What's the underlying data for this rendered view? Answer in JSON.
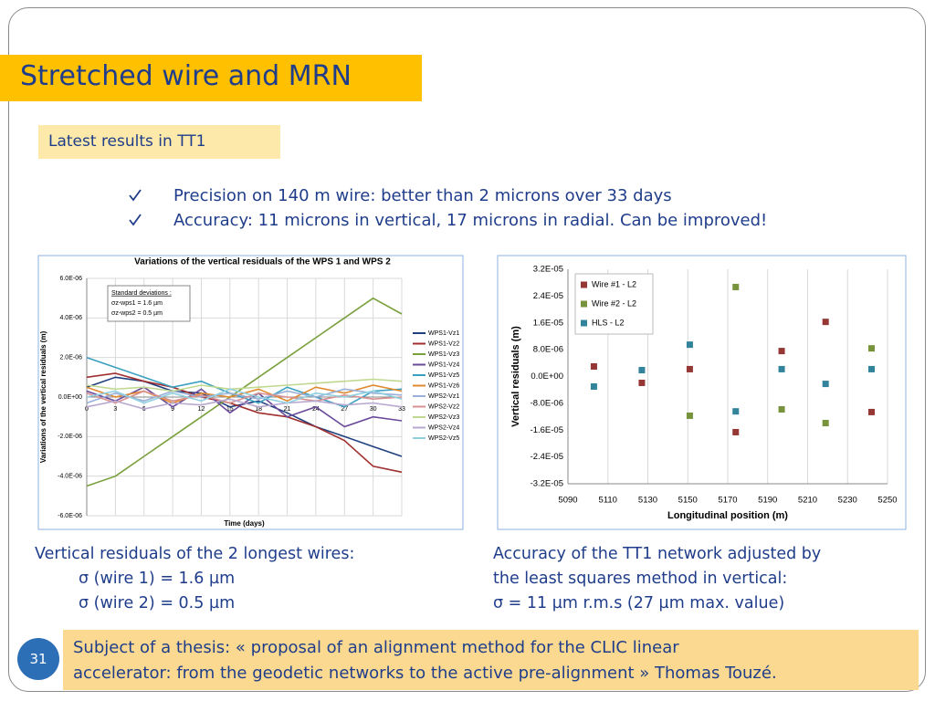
{
  "title": "Stretched wire and MRN",
  "subtitle": "Latest results in TT1",
  "bullets": [
    "Precision on 140 m wire: better than 2 microns over 33 days",
    "Accuracy: 11 microns in vertical, 17 microns in radial. Can be improved!"
  ],
  "left_caption": [
    "Vertical residuals of the 2 longest wires:",
    "σ (wire 1) = 1.6 µm",
    "σ (wire 2) = 0.5 µm"
  ],
  "right_caption": [
    "Accuracy of the TT1 network adjusted by",
    "the least squares method in vertical:",
    "σ = 11 µm r.m.s (27 µm max. value)"
  ],
  "footer_note": [
    "Subject of a thesis: « proposal of an alignment method for the CLIC linear",
    "accelerator: from the geodetic networks to the active pre-alignment » Thomas Touzé."
  ],
  "page_number": "31",
  "chart_data": [
    {
      "type": "line",
      "title": "Variations of the vertical residuals of the WPS 1 and WPS 2",
      "xlabel": "Time (days)",
      "ylabel": "Variations of the vertical residuals (m)",
      "x": [
        0,
        3,
        6,
        9,
        12,
        15,
        18,
        21,
        24,
        27,
        30,
        33
      ],
      "xlim": [
        0,
        33
      ],
      "xticks": [
        0,
        3,
        6,
        9,
        12,
        15,
        18,
        21,
        24,
        27,
        30,
        33
      ],
      "ylim": [
        -6e-06,
        6e-06
      ],
      "yticks": [
        {
          "value": -6e-06,
          "label": "-6.0E-06"
        },
        {
          "value": -4e-06,
          "label": "-4.0E-06"
        },
        {
          "value": -2e-06,
          "label": "-2.0E-06"
        },
        {
          "value": 0,
          "label": "0.0E+00"
        },
        {
          "value": 2e-06,
          "label": "2.0E-06"
        },
        {
          "value": 4e-06,
          "label": "4.0E-06"
        },
        {
          "value": 6e-06,
          "label": "6.0E-06"
        }
      ],
      "grid": true,
      "legend": "right",
      "annotations": [
        "Standard deviations :",
        "σz-wps1 = 1.6 µm",
        "σz-wps2 = 0.5 µm"
      ],
      "series": [
        {
          "name": "WPS1-Vz1",
          "color": "#1f3f7f",
          "values": [
            5e-07,
            1e-06,
            8e-07,
            3e-07,
            2e-07,
            -5e-07,
            -2e-07,
            -8e-07,
            -1.5e-06,
            -2e-06,
            -2.5e-06,
            -3e-06
          ]
        },
        {
          "name": "WPS1-Vz2",
          "color": "#a03030",
          "values": [
            1e-06,
            1.2e-06,
            8e-07,
            5e-07,
            0,
            -3e-07,
            -8e-07,
            -1e-06,
            -1.5e-06,
            -2.2e-06,
            -3.5e-06,
            -3.8e-06
          ]
        },
        {
          "name": "WPS1-Vz3",
          "color": "#7aa03c",
          "values": [
            -4.5e-06,
            -4e-06,
            -3e-06,
            -2e-06,
            -1e-06,
            0,
            1e-06,
            2e-06,
            3e-06,
            4e-06,
            5e-06,
            4.2e-06
          ]
        },
        {
          "name": "WPS1-Vz4",
          "color": "#6a4a9a",
          "values": [
            3e-07,
            -2e-07,
            5e-07,
            -5e-07,
            4e-07,
            -8e-07,
            2e-07,
            -1e-06,
            -5e-07,
            -1.5e-06,
            -1e-06,
            -1.2e-06
          ]
        },
        {
          "name": "WPS1-Vz5",
          "color": "#3aa0c0",
          "values": [
            2e-06,
            1.5e-06,
            1e-06,
            5e-07,
            8e-07,
            2e-07,
            -3e-07,
            5e-07,
            0,
            -5e-07,
            3e-07,
            4e-07
          ]
        },
        {
          "name": "WPS1-Vz6",
          "color": "#e08a30",
          "values": [
            5e-07,
            0,
            3e-07,
            -3e-07,
            2e-07,
            0,
            4e-07,
            -2e-07,
            5e-07,
            2e-07,
            6e-07,
            3e-07
          ]
        },
        {
          "name": "WPS2-Vz1",
          "color": "#9ab0d8",
          "values": [
            -3e-07,
            2e-07,
            -2e-07,
            3e-07,
            0,
            2e-07,
            -1e-07,
            3e-07,
            0,
            4e-07,
            2e-07,
            1e-07
          ]
        },
        {
          "name": "WPS2-Vz2",
          "color": "#d89090",
          "values": [
            2e-07,
            -3e-07,
            3e-07,
            -2e-07,
            1e-07,
            -3e-07,
            2e-07,
            0,
            -2e-07,
            1e-07,
            -1e-07,
            0
          ]
        },
        {
          "name": "WPS2-Vz3",
          "color": "#c0d890",
          "values": [
            6e-07,
            4e-07,
            5e-07,
            3e-07,
            6e-07,
            4e-07,
            5e-07,
            6e-07,
            7e-07,
            8e-07,
            9e-07,
            8e-07
          ]
        },
        {
          "name": "WPS2-Vz4",
          "color": "#b8a8d0",
          "values": [
            -5e-07,
            -2e-07,
            -6e-07,
            -3e-07,
            -4e-07,
            -1e-07,
            -5e-07,
            -3e-07,
            -2e-07,
            -4e-07,
            -3e-07,
            -5e-07
          ]
        },
        {
          "name": "WPS2-Vz5",
          "color": "#90d0e0",
          "values": [
            0,
            3e-07,
            -3e-07,
            2e-07,
            -2e-07,
            4e-07,
            0,
            -3e-07,
            2e-07,
            0,
            3e-07,
            -1e-07
          ]
        }
      ]
    },
    {
      "type": "scatter",
      "xlabel": "Longitudinal position (m)",
      "ylabel": "Vertical residuals (m)",
      "xlim": [
        5090,
        5250
      ],
      "xticks": [
        5090,
        5110,
        5130,
        5150,
        5170,
        5190,
        5210,
        5230,
        5250
      ],
      "ylim": [
        -3.2e-05,
        3.2e-05
      ],
      "yticks": [
        {
          "value": -3.2e-05,
          "label": "-3.2E-05"
        },
        {
          "value": -2.4e-05,
          "label": "-2.4E-05"
        },
        {
          "value": -1.6e-05,
          "label": "-1.6E-05"
        },
        {
          "value": -8e-06,
          "label": "-8.0E-06"
        },
        {
          "value": 0,
          "label": "0.0E+00"
        },
        {
          "value": 8e-06,
          "label": "8.0E-06"
        },
        {
          "value": 1.6e-05,
          "label": "1.6E-05"
        },
        {
          "value": 2.4e-05,
          "label": "2.4E-05"
        },
        {
          "value": 3.2e-05,
          "label": "3.2E-05"
        }
      ],
      "grid": "x",
      "legend": "upper left",
      "series": [
        {
          "name": "Wire #1 - L2",
          "color": "#953735",
          "x": [
            5103,
            5127,
            5151,
            5174,
            5197,
            5219,
            5242
          ],
          "values": [
            3e-06,
            -1.9e-06,
            2.2e-06,
            -1.66e-05,
            7.6e-06,
            1.63e-05,
            -1.06e-05
          ]
        },
        {
          "name": "Wire #2 - L2",
          "color": "#77933c",
          "x": [
            5151,
            5174,
            5197,
            5219,
            5242
          ],
          "values": [
            -1.17e-05,
            2.67e-05,
            -9.8e-06,
            -1.39e-05,
            8.4e-06
          ]
        },
        {
          "name": "HLS - L2",
          "color": "#31849b",
          "x": [
            5103,
            5127,
            5151,
            5174,
            5197,
            5219,
            5242
          ],
          "values": [
            -3e-06,
            1.9e-06,
            9.5e-06,
            -1.04e-05,
            2.2e-06,
            -2.2e-06,
            2.2e-06
          ]
        }
      ]
    }
  ]
}
